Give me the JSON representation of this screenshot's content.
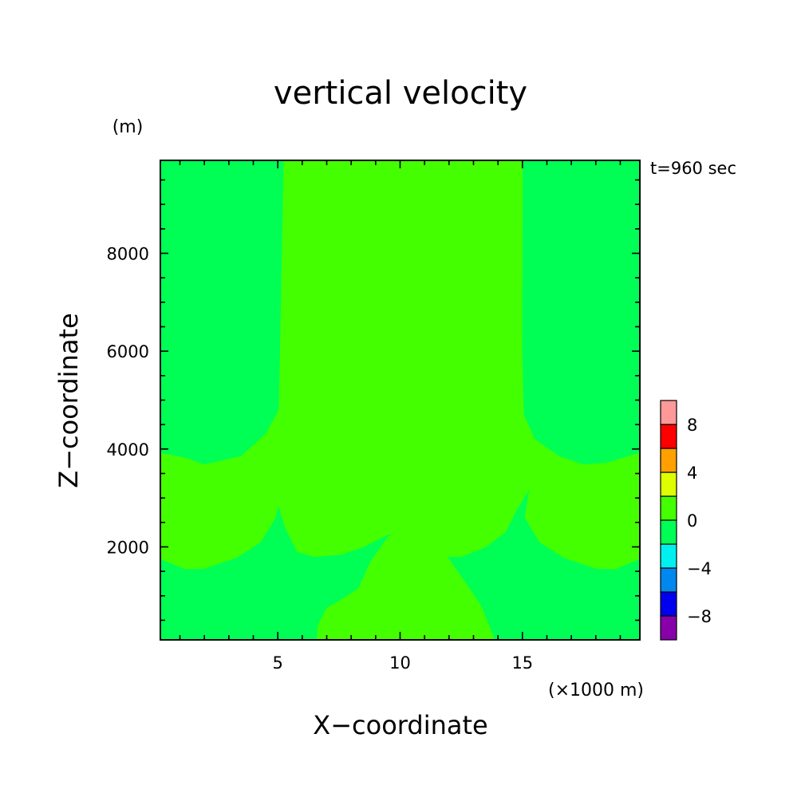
{
  "chart_data": {
    "type": "heatmap",
    "title": "vertical velocity",
    "xlabel": "X−coordinate",
    "ylabel": "Z−coordinate",
    "x_unit": "(×1000 m)",
    "y_unit": "(m)",
    "time_label": "t=960 sec",
    "xlim": [
      0.2,
      19.8
    ],
    "ylim": [
      100,
      9900
    ],
    "x_ticks": [
      {
        "value": 5,
        "label": "5"
      },
      {
        "value": 10,
        "label": "10"
      },
      {
        "value": 15,
        "label": "15"
      }
    ],
    "y_ticks": [
      {
        "value": 2000,
        "label": "2000"
      },
      {
        "value": 4000,
        "label": "4000"
      },
      {
        "value": 6000,
        "label": "6000"
      },
      {
        "value": 8000,
        "label": "8000"
      }
    ],
    "colorbar": {
      "min": -10,
      "max": 10,
      "step": 2,
      "levels": [
        {
          "from": -10,
          "to": -8,
          "color": "#8800aa"
        },
        {
          "from": -8,
          "to": -6,
          "color": "#0000ee"
        },
        {
          "from": -6,
          "to": -4,
          "color": "#0088ee"
        },
        {
          "from": -4,
          "to": -2,
          "color": "#00f0f0"
        },
        {
          "from": -2,
          "to": 0,
          "color": "#00ff55"
        },
        {
          "from": 0,
          "to": 2,
          "color": "#44ff00"
        },
        {
          "from": 2,
          "to": 4,
          "color": "#ddff00"
        },
        {
          "from": 4,
          "to": 6,
          "color": "#ffa000"
        },
        {
          "from": 6,
          "to": 8,
          "color": "#ff0000"
        },
        {
          "from": 8,
          "to": 10,
          "color": "#ff9999"
        }
      ],
      "tick_labels": [
        {
          "value": 8,
          "label": "8"
        },
        {
          "value": 4,
          "label": "4"
        },
        {
          "value": 0,
          "label": "0"
        },
        {
          "value": -4,
          "label": "−4"
        },
        {
          "value": -8,
          "label": "−8"
        }
      ]
    },
    "background_level_color": "#00ff55",
    "regions": [
      {
        "name": "upper-updraft-region",
        "color": "#44ff00",
        "points": [
          [
            5.25,
            9900
          ],
          [
            15.0,
            9900
          ],
          [
            14.98,
            6000
          ],
          [
            15.05,
            4700
          ],
          [
            15.5,
            4200
          ],
          [
            16.5,
            3850
          ],
          [
            17.5,
            3680
          ],
          [
            18.5,
            3720
          ],
          [
            19.8,
            3920
          ],
          [
            19.8,
            3200
          ],
          [
            15.3,
            3200
          ],
          [
            15.1,
            3600
          ],
          [
            14.6,
            3750
          ],
          [
            13.5,
            3880
          ],
          [
            12.5,
            3930
          ],
          [
            10.3,
            3930
          ],
          [
            8.5,
            3880
          ],
          [
            7.0,
            3800
          ],
          [
            6.3,
            3700
          ],
          [
            5.8,
            3600
          ],
          [
            5.2,
            3200
          ],
          [
            0.2,
            3200
          ],
          [
            0.2,
            3920
          ],
          [
            1.2,
            3820
          ],
          [
            2.0,
            3680
          ],
          [
            3.5,
            3850
          ],
          [
            4.5,
            4300
          ],
          [
            5.05,
            4800
          ],
          [
            5.1,
            6000
          ],
          [
            5.25,
            9900
          ]
        ]
      },
      {
        "name": "mid-level-updraft-band",
        "color": "#44ff00",
        "points": [
          [
            0.2,
            3200
          ],
          [
            0.2,
            1760
          ],
          [
            1.2,
            1550
          ],
          [
            2.0,
            1560
          ],
          [
            3.3,
            1780
          ],
          [
            4.3,
            2100
          ],
          [
            4.9,
            2600
          ],
          [
            5.2,
            3200
          ],
          [
            0.2,
            3200
          ]
        ]
      },
      {
        "name": "mid-level-updraft-band-right",
        "color": "#44ff00",
        "points": [
          [
            19.8,
            3200
          ],
          [
            19.8,
            1760
          ],
          [
            18.8,
            1550
          ],
          [
            18.0,
            1560
          ],
          [
            16.7,
            1780
          ],
          [
            15.7,
            2100
          ],
          [
            15.1,
            2600
          ],
          [
            15.3,
            3200
          ],
          [
            19.8,
            3200
          ]
        ]
      },
      {
        "name": "center-mid-updraft",
        "color": "#44ff00",
        "points": [
          [
            5.2,
            3200
          ],
          [
            5.8,
            3600
          ],
          [
            6.3,
            3700
          ],
          [
            7.0,
            3800
          ],
          [
            8.5,
            3880
          ],
          [
            10.3,
            3930
          ],
          [
            12.5,
            3930
          ],
          [
            13.5,
            3880
          ],
          [
            14.6,
            3750
          ],
          [
            15.1,
            3600
          ],
          [
            15.3,
            3200
          ],
          [
            14.7,
            2700
          ],
          [
            14.3,
            2300
          ],
          [
            13.5,
            2000
          ],
          [
            12.5,
            1800
          ],
          [
            11.3,
            1800
          ],
          [
            11.0,
            2150
          ],
          [
            10.3,
            2300
          ],
          [
            9.5,
            2250
          ],
          [
            8.5,
            2000
          ],
          [
            7.6,
            1850
          ],
          [
            6.5,
            1800
          ],
          [
            5.8,
            1900
          ],
          [
            5.3,
            2400
          ],
          [
            5.0,
            2900
          ],
          [
            5.2,
            3200
          ]
        ]
      },
      {
        "name": "low-level-updraft",
        "color": "#44ff00",
        "points": [
          [
            6.6,
            100
          ],
          [
            6.65,
            400
          ],
          [
            7.0,
            750
          ],
          [
            7.6,
            920
          ],
          [
            8.3,
            1150
          ],
          [
            8.8,
            1700
          ],
          [
            9.5,
            2200
          ],
          [
            10.2,
            2400
          ],
          [
            10.8,
            2380
          ],
          [
            11.5,
            2100
          ],
          [
            12.2,
            1600
          ],
          [
            12.9,
            1100
          ],
          [
            13.3,
            800
          ],
          [
            13.7,
            300
          ],
          [
            13.85,
            100
          ],
          [
            6.6,
            100
          ]
        ]
      }
    ]
  }
}
